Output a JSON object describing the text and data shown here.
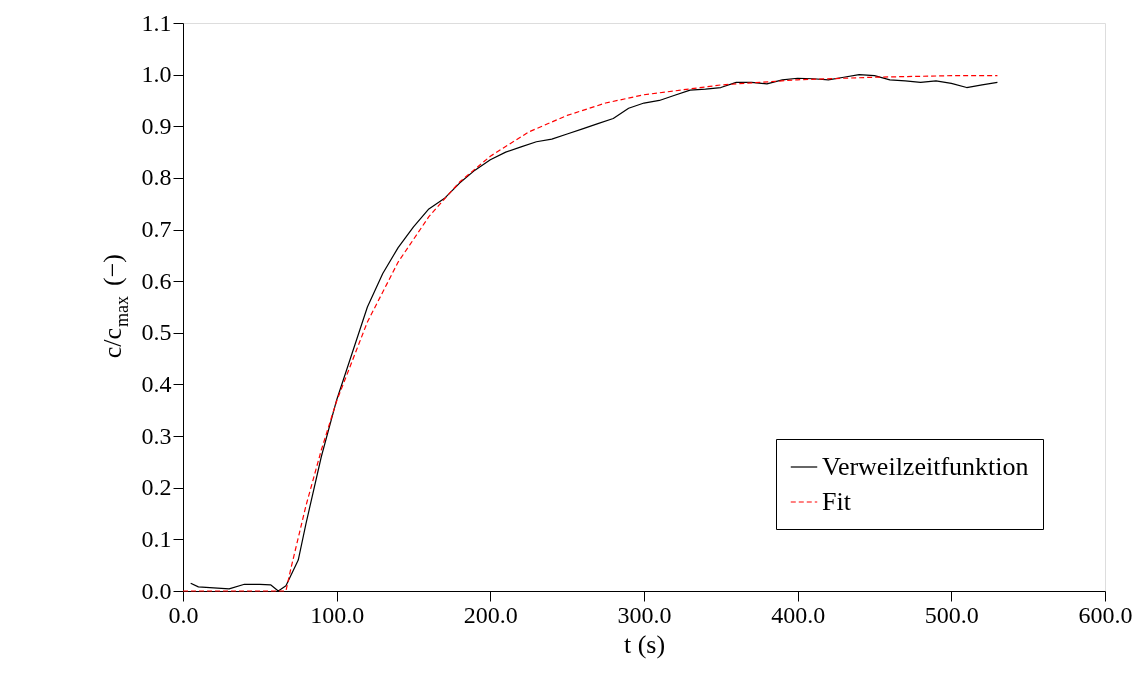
{
  "chart_data": {
    "type": "line",
    "xlabel": "t (s)",
    "ylabel": "c/c$_{max}$ (−)",
    "xlim": [
      0,
      600
    ],
    "ylim": [
      0,
      1.1
    ],
    "xticks": [
      {
        "value": 0,
        "label": "0.0"
      },
      {
        "value": 100,
        "label": "100.0"
      },
      {
        "value": 200,
        "label": "200.0"
      },
      {
        "value": 300,
        "label": "300.0"
      },
      {
        "value": 400,
        "label": "400.0"
      },
      {
        "value": 500,
        "label": "500.0"
      },
      {
        "value": 600,
        "label": "600.0"
      }
    ],
    "yticks": [
      {
        "value": 0,
        "label": "0.0"
      },
      {
        "value": 0.1,
        "label": "0.1"
      },
      {
        "value": 0.2,
        "label": "0.2"
      },
      {
        "value": 0.3,
        "label": "0.3"
      },
      {
        "value": 0.4,
        "label": "0.4"
      },
      {
        "value": 0.5,
        "label": "0.5"
      },
      {
        "value": 0.6,
        "label": "0.6"
      },
      {
        "value": 0.7,
        "label": "0.7"
      },
      {
        "value": 0.8,
        "label": "0.8"
      },
      {
        "value": 0.9,
        "label": "0.9"
      },
      {
        "value": 1.0,
        "label": "1.0"
      },
      {
        "value": 1.1,
        "label": "1.1"
      }
    ],
    "grid": false,
    "legend": "bottom right",
    "marker": "none",
    "series": [
      {
        "name": "Verweilzeitfunktion",
        "color": "#000000",
        "line_style": "solid",
        "x": [
          5,
          10,
          20,
          30,
          40,
          50,
          57,
          62,
          67,
          75,
          80,
          90,
          100,
          110,
          120,
          130,
          140,
          150,
          160,
          170,
          180,
          190,
          200,
          210,
          220,
          230,
          240,
          250,
          260,
          270,
          280,
          290,
          300,
          310,
          320,
          330,
          340,
          350,
          360,
          370,
          380,
          390,
          400,
          410,
          420,
          430,
          440,
          450,
          460,
          470,
          480,
          490,
          500,
          510,
          520,
          530
        ],
        "values": [
          0.015,
          0.008,
          0.006,
          0.004,
          0.013,
          0.013,
          0.012,
          0.0,
          0.01,
          0.06,
          0.13,
          0.26,
          0.37,
          0.46,
          0.55,
          0.615,
          0.665,
          0.705,
          0.74,
          0.76,
          0.79,
          0.815,
          0.835,
          0.85,
          0.86,
          0.87,
          0.875,
          0.885,
          0.895,
          0.905,
          0.915,
          0.935,
          0.945,
          0.95,
          0.96,
          0.97,
          0.972,
          0.975,
          0.985,
          0.985,
          0.982,
          0.99,
          0.993,
          0.992,
          0.99,
          0.995,
          1.0,
          0.998,
          0.99,
          0.988,
          0.985,
          0.988,
          0.983,
          0.975,
          0.98,
          0.985
        ]
      },
      {
        "name": "Fit",
        "color": "#ff0000",
        "line_style": "dashed",
        "x": [
          0,
          67,
          70,
          80,
          90,
          100,
          120,
          140,
          160,
          180,
          200,
          225,
          250,
          275,
          300,
          350,
          400,
          450,
          500,
          530
        ],
        "values": [
          0,
          0,
          0.041,
          0.165,
          0.273,
          0.368,
          0.521,
          0.637,
          0.725,
          0.792,
          0.842,
          0.889,
          0.921,
          0.945,
          0.961,
          0.98,
          0.99,
          0.995,
          0.998,
          0.998
        ]
      }
    ]
  }
}
